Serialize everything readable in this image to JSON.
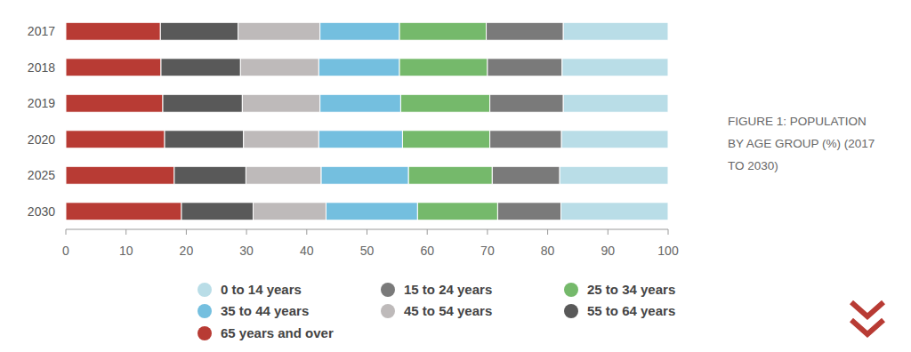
{
  "chart_data": {
    "type": "bar",
    "orientation": "horizontal",
    "stacked": true,
    "title": "FIGURE 1: POPULATION BY AGE GROUP (%) (2017 TO 2030)",
    "categories": [
      "2017",
      "2018",
      "2019",
      "2020",
      "2025",
      "2030"
    ],
    "series": [
      {
        "name": "65 years and over",
        "color": "#b83b34",
        "values": [
          15.7,
          15.8,
          16.1,
          16.4,
          18.0,
          19.2
        ]
      },
      {
        "name": "55 to 64 years",
        "color": "#595959",
        "values": [
          12.9,
          13.2,
          13.2,
          13.1,
          11.9,
          11.9
        ]
      },
      {
        "name": "45 to 54 years",
        "color": "#bebaba",
        "values": [
          13.6,
          13.0,
          12.9,
          12.5,
          12.5,
          12.1
        ]
      },
      {
        "name": "35 to 44 years",
        "color": "#74bfdf",
        "values": [
          13.2,
          13.4,
          13.4,
          13.9,
          14.5,
          15.2
        ]
      },
      {
        "name": "25 to 34 years",
        "color": "#75b96b",
        "values": [
          14.4,
          14.6,
          14.8,
          14.5,
          13.9,
          13.3
        ]
      },
      {
        "name": "15 to 24 years",
        "color": "#7a7a7a",
        "values": [
          12.8,
          12.4,
          12.2,
          11.9,
          11.2,
          10.5
        ]
      },
      {
        "name": "0 to 14 years",
        "color": "#b9dde7",
        "values": [
          17.4,
          17.6,
          17.4,
          17.7,
          18.0,
          17.8
        ]
      }
    ],
    "xlim": [
      0,
      100
    ],
    "xticks": [
      0,
      10,
      20,
      30,
      40,
      50,
      60,
      70,
      80,
      90,
      100
    ],
    "grid": false,
    "legend": "bottom"
  }
}
